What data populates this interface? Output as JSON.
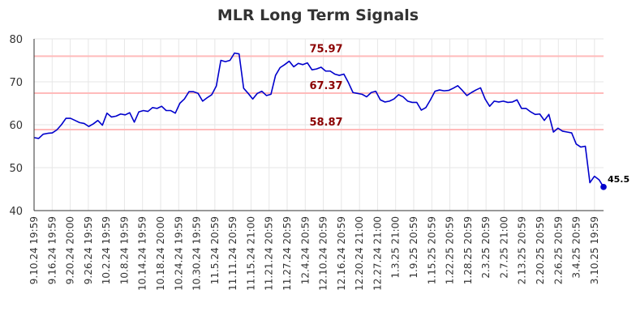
{
  "chart_data": {
    "type": "line",
    "title": "MLR Long Term Signals",
    "xlabel": "",
    "ylabel": "",
    "ylim": [
      40,
      80
    ],
    "yticks": [
      40,
      50,
      60,
      70,
      80
    ],
    "grid": true,
    "x_tick_labels": [
      "9.10.24 19:59",
      "9.16.24 19:59",
      "9.20.24 20:00",
      "9.26.24 19:59",
      "10.2.24 19:59",
      "10.8.24 19:59",
      "10.14.24 19:59",
      "10.18.24 20:00",
      "10.24.24 19:59",
      "10.30.24 19:59",
      "11.5.24 20:59",
      "11.11.24 20:59",
      "11.15.24 21:00",
      "11.21.24 20:59",
      "11.27.24 20:59",
      "12.4.24 20:59",
      "12.10.24 20:59",
      "12.16.24 20:59",
      "12.20.24 21:00",
      "12.27.24 21:00",
      "1.3.25 21:00",
      "1.9.25 20:59",
      "1.15.25 20:59",
      "1.22.25 20:59",
      "1.28.25 20:59",
      "2.3.25 20:59",
      "2.7.25 21:00",
      "2.13.25 20:59",
      "2.20.25 20:59",
      "2.26.25 20:59",
      "3.4.25 20:59",
      "3.10.25 19:59"
    ],
    "horizontal_lines": [
      {
        "value": 75.97,
        "label": "75.97",
        "color": "#ffbbbb"
      },
      {
        "value": 67.37,
        "label": "67.37",
        "color": "#ffbbbb"
      },
      {
        "value": 58.87,
        "label": "58.87",
        "color": "#ffbbbb"
      }
    ],
    "line_color": "#0000cc",
    "label_color": "#8b0000",
    "series": [
      {
        "values": [
          57,
          56.8,
          57.8,
          58,
          58.1,
          58.8,
          60,
          61.5,
          61.5,
          61,
          60.5,
          60.3,
          59.6,
          60.2,
          61,
          59.9,
          62.7,
          61.8,
          62,
          62.5,
          62.3,
          62.8,
          60.6,
          63,
          63.3,
          63.1,
          64,
          63.8,
          64.3,
          63.3,
          63.3,
          62.7,
          65,
          66,
          67.7,
          67.7,
          67.3,
          65.5,
          66.3,
          67,
          69,
          75,
          74.7,
          75,
          76.7,
          76.5,
          68.5,
          67.3,
          66,
          67.3,
          67.8,
          66.8,
          67.1,
          71.5,
          73.3,
          74,
          74.8,
          73.5,
          74.3,
          74,
          74.4,
          72.8,
          73,
          73.4,
          72.5,
          72.5,
          71.8,
          71.5,
          71.8,
          69.8,
          67.5,
          67.3,
          67.1,
          66.5,
          67.5,
          67.8,
          65.8,
          65.3,
          65.5,
          66,
          67,
          66.5,
          65.5,
          65.2,
          65.2,
          63.4,
          64,
          65.8,
          67.8,
          68.1,
          67.9,
          68,
          68.5,
          69.1,
          68,
          66.8,
          67.5,
          68.1,
          68.6,
          66,
          64.3,
          65.5,
          65.3,
          65.5,
          65.2,
          65.3,
          65.8,
          63.8,
          63.8,
          63,
          62.4,
          62.5,
          61,
          62.4,
          58.3,
          59.2,
          58.5,
          58.3,
          58.1,
          55.5,
          54.8,
          55,
          46.5,
          48,
          47.2,
          45.5
        ]
      }
    ],
    "last_point_label": "45.5"
  }
}
